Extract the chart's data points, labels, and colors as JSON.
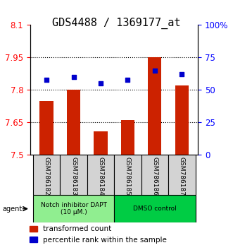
{
  "title": "GDS4488 / 1369177_at",
  "samples": [
    "GSM786182",
    "GSM786183",
    "GSM786184",
    "GSM786185",
    "GSM786186",
    "GSM786187"
  ],
  "red_values": [
    7.75,
    7.8,
    7.61,
    7.66,
    7.95,
    7.82
  ],
  "blue_values": [
    58,
    60,
    55,
    58,
    65,
    62
  ],
  "ylim_left": [
    7.5,
    8.1
  ],
  "ylim_right": [
    0,
    100
  ],
  "yticks_left": [
    7.5,
    7.65,
    7.8,
    7.95,
    8.1
  ],
  "ytick_labels_left": [
    "7.5",
    "7.65",
    "7.8",
    "7.95",
    "8.1"
  ],
  "yticks_right": [
    0,
    25,
    50,
    75,
    100
  ],
  "ytick_labels_right": [
    "0",
    "25",
    "50",
    "75",
    "100%"
  ],
  "hlines": [
    7.65,
    7.8,
    7.95
  ],
  "group1_label": "Notch inhibitor DAPT\n(10 μM.)",
  "group2_label": "DMSO control",
  "group1_color": "#90EE90",
  "group2_color": "#00CC44",
  "group1_indices": [
    0,
    1,
    2
  ],
  "group2_indices": [
    3,
    4,
    5
  ],
  "bar_color": "#CC2200",
  "dot_color": "#0000CC",
  "bar_bottom": 7.5,
  "bar_width": 0.5,
  "legend_red": "transformed count",
  "legend_blue": "percentile rank within the sample",
  "agent_label": "agent",
  "background_color": "#FFFFFF",
  "plot_bg_color": "#FFFFFF",
  "tick_area_color": "#D3D3D3",
  "title_fontsize": 11,
  "tick_fontsize": 8.5,
  "label_fontsize": 8,
  "legend_fontsize": 7.5
}
